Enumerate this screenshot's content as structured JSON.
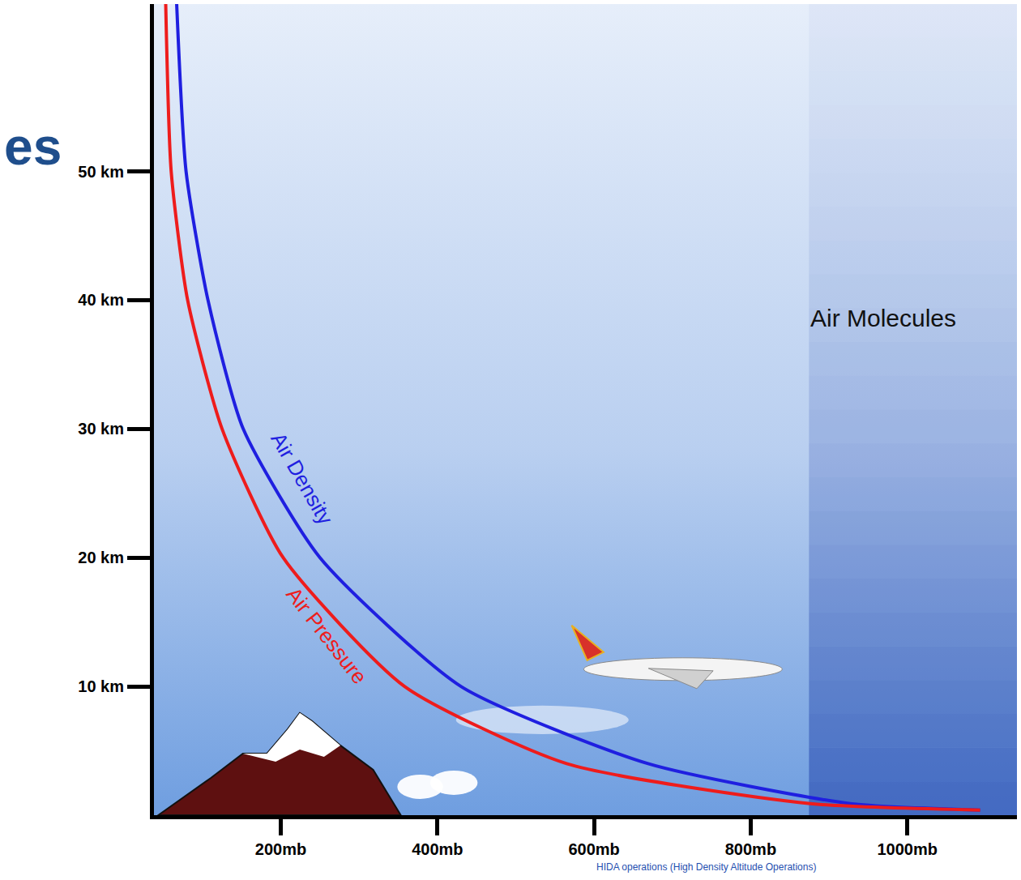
{
  "chart_data": {
    "type": "line",
    "title": "es",
    "xlim": [
      38,
      1140
    ],
    "ylim": [
      0,
      63
    ],
    "xticks": [
      {
        "value": 200,
        "label": "200mb"
      },
      {
        "value": 400,
        "label": "400mb"
      },
      {
        "value": 600,
        "label": "600mb"
      },
      {
        "value": 800,
        "label": "800mb"
      },
      {
        "value": 1000,
        "label": "1000mb"
      }
    ],
    "yticks": [
      {
        "value": 10,
        "label": "10 km"
      },
      {
        "value": 20,
        "label": "20 km"
      },
      {
        "value": 30,
        "label": "30 km"
      },
      {
        "value": 40,
        "label": "40 km"
      },
      {
        "value": 50,
        "label": "50 km"
      }
    ],
    "grid": false,
    "series": [
      {
        "name": "Air Density",
        "color": "#1f1fe0",
        "x": [
          67,
          79,
          107,
          152,
          250,
          430,
          669,
          927,
          1093
        ],
        "values": [
          63,
          50,
          40,
          30,
          20,
          10,
          4,
          0.9,
          0.4
        ]
      },
      {
        "name": "Air Pressure",
        "color": "#ee1c1c",
        "x": [
          53,
          60,
          81,
          125,
          203,
          358,
          565,
          876,
          1093
        ],
        "values": [
          63,
          50,
          40,
          30,
          20,
          10,
          4,
          0.9,
          0.4
        ]
      }
    ],
    "annotations": [
      "Air Molecules",
      "HIDA operations (High Density Altitude Operations)"
    ]
  }
}
